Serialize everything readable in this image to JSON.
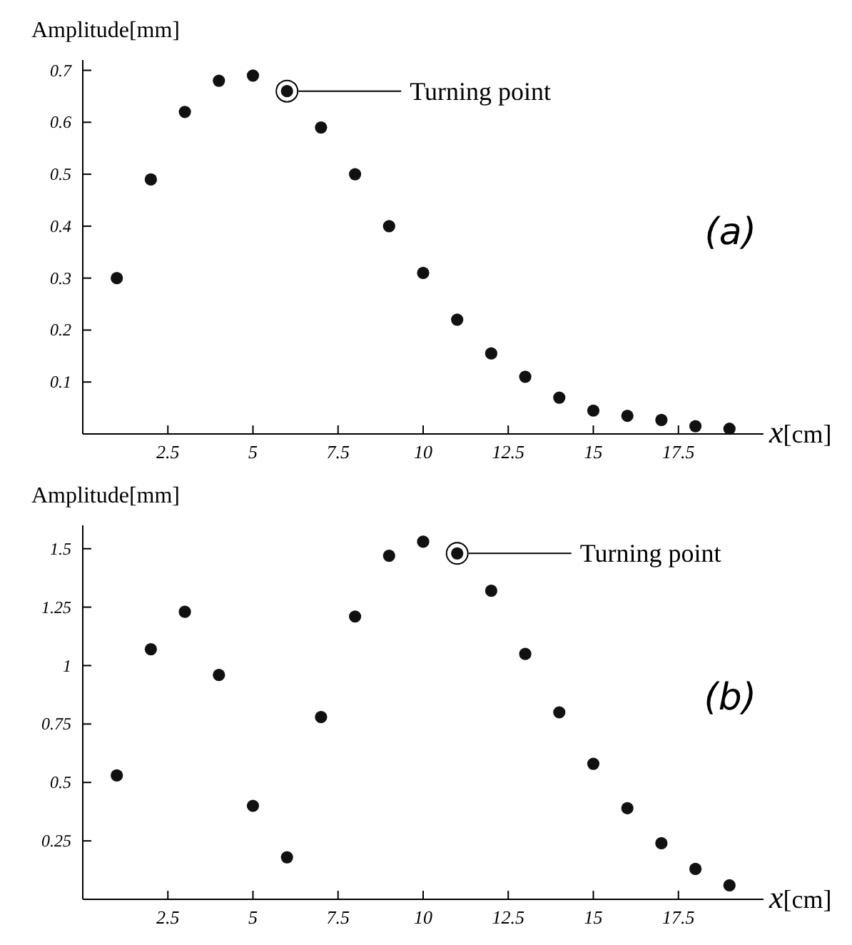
{
  "chart_data": [
    {
      "type": "scatter",
      "title": "(a)",
      "xlabel": "x[cm]",
      "ylabel": "Amplitude[mm]",
      "x": [
        1,
        2,
        3,
        4,
        5,
        6,
        7,
        8,
        9,
        10,
        11,
        12,
        13,
        14,
        15,
        16,
        17,
        18,
        19
      ],
      "values": [
        0.3,
        0.49,
        0.62,
        0.68,
        0.69,
        0.66,
        0.59,
        0.5,
        0.4,
        0.31,
        0.22,
        0.155,
        0.11,
        0.07,
        0.045,
        0.035,
        0.027,
        0.015,
        0.01
      ],
      "color": "#111111",
      "marker": "circle",
      "xlim": [
        0,
        20
      ],
      "ylim": [
        0,
        0.72
      ],
      "xticks": [
        2.5,
        5,
        7.5,
        10,
        12.5,
        15,
        17.5
      ],
      "yticks": [
        0.1,
        0.2,
        0.3,
        0.4,
        0.5,
        0.6,
        0.7
      ],
      "annotations": [
        {
          "text": "Turning point",
          "x": 6,
          "y": 0.66
        }
      ]
    },
    {
      "type": "scatter",
      "title": "(b)",
      "xlabel": "x[cm]",
      "ylabel": "Amplitude[mm]",
      "x": [
        1,
        2,
        3,
        4,
        5,
        6,
        7,
        8,
        9,
        10,
        11,
        12,
        13,
        14,
        15,
        16,
        17,
        18,
        19
      ],
      "values": [
        0.53,
        1.07,
        1.23,
        0.96,
        0.4,
        0.18,
        0.78,
        1.21,
        1.47,
        1.53,
        1.48,
        1.32,
        1.05,
        0.8,
        0.58,
        0.39,
        0.24,
        0.13,
        0.06
      ],
      "color": "#111111",
      "marker": "circle",
      "xlim": [
        0,
        20
      ],
      "ylim": [
        0,
        1.6
      ],
      "xticks": [
        2.5,
        5,
        7.5,
        10,
        12.5,
        15,
        17.5
      ],
      "yticks": [
        0.25,
        0.5,
        0.75,
        1,
        1.25,
        1.5
      ],
      "annotations": [
        {
          "text": "Turning point",
          "x": 11,
          "y": 1.48
        }
      ]
    }
  ]
}
